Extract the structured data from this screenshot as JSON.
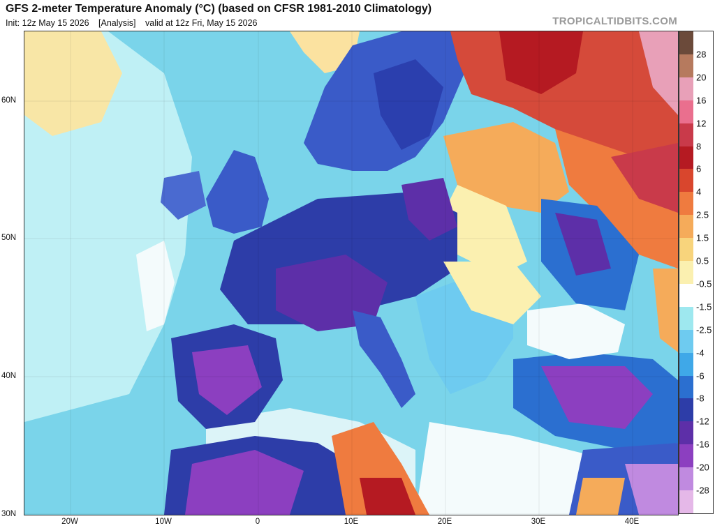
{
  "header": {
    "title": "GFS 2-meter Temperature Anomaly (°C) (based on CFSR 1981-2010 Climatology)",
    "init": "Init: 12z May 15 2026",
    "analysis": "[Analysis]",
    "valid": "valid at 12z Fri, May 15 2026",
    "brand": "TROPICALTIDBITS.COM"
  },
  "map": {
    "lat_labels": [
      "60N",
      "50N",
      "40N",
      "30N"
    ],
    "lon_labels": [
      "20W",
      "10W",
      "0",
      "10E",
      "20E",
      "30E",
      "40E"
    ]
  },
  "colorbar": {
    "labels": [
      "28",
      "20",
      "16",
      "12",
      "8",
      "6",
      "4",
      "2.5",
      "1.5",
      "0.5",
      "-0.5",
      "-1.5",
      "-2.5",
      "-4",
      "-6",
      "-8",
      "-12",
      "-16",
      "-20",
      "-28"
    ],
    "colors": [
      "#6b4a3a",
      "#b67a5e",
      "#e8a0b8",
      "#ea6f8e",
      "#c93a4a",
      "#b51a22",
      "#d9462d",
      "#ef7b3f",
      "#f5ab5a",
      "#f8d47c",
      "#fbf0b0",
      "#ffffff",
      "#9ee8ef",
      "#6ecbf0",
      "#3fa8e8",
      "#2b6fd0",
      "#2d3da8",
      "#5d2fa8",
      "#8c3fc0",
      "#c08ae0",
      "#e5b8e8"
    ]
  }
}
